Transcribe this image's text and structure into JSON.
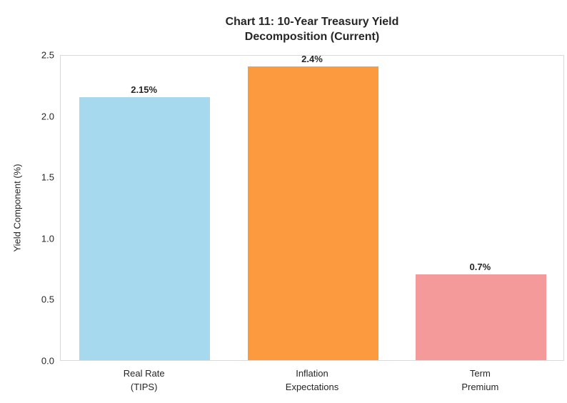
{
  "figure": {
    "background_color": "#ffffff",
    "text_color": "#262626",
    "spine_color": "#d9d9d9"
  },
  "chart_data": {
    "type": "bar",
    "title_line1": "Chart 11: 10-Year Treasury Yield",
    "title_line2": "Decomposition (Current)",
    "ylabel": "Yield Component (%)",
    "xlabel": "",
    "ylim": [
      0,
      2.5
    ],
    "yticks": [
      "0.0",
      "0.5",
      "1.0",
      "1.5",
      "2.0",
      "2.5"
    ],
    "ytick_values": [
      0.0,
      0.5,
      1.0,
      1.5,
      2.0,
      2.5
    ],
    "grid": false,
    "legend": "none",
    "categories": [
      "Real Rate\n(TIPS)",
      "Inflation\nExpectations",
      "Term\nPremium"
    ],
    "values": [
      2.15,
      2.4,
      0.7
    ],
    "value_labels": [
      "2.15%",
      "2.4%",
      "0.7%"
    ],
    "bar_colors": [
      "#a6d9ee",
      "#fb9a3f",
      "#f49a9a"
    ]
  }
}
